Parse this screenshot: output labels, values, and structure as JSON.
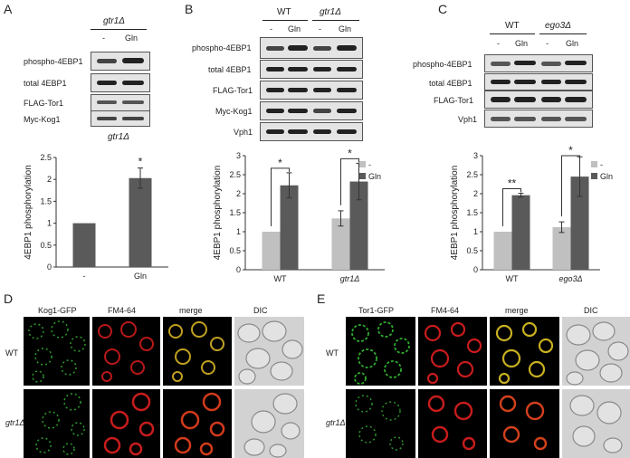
{
  "panels": {
    "A": {
      "letter": "A",
      "strain": "gtr1Δ",
      "lanes": [
        "-",
        "Gln"
      ],
      "blots": [
        "phospho-4EBP1",
        "total 4EBP1",
        "FLAG-Tor1",
        "Myc-Kog1"
      ],
      "chart_title": "gtr1Δ"
    },
    "B": {
      "letter": "B",
      "groups": [
        "WT",
        "gtr1Δ"
      ],
      "lanes": [
        "-",
        "Gln",
        "-",
        "Gln"
      ],
      "blots": [
        "phospho-4EBP1",
        "total 4EBP1",
        "FLAG-Tor1",
        "Myc-Kog1",
        "Vph1"
      ]
    },
    "C": {
      "letter": "C",
      "groups": [
        "WT",
        "ego3Δ"
      ],
      "lanes": [
        "-",
        "Gln",
        "-",
        "Gln"
      ],
      "blots": [
        "phospho-4EBP1",
        "total 4EBP1",
        "FLAG-Tor1",
        "Vph1"
      ]
    },
    "D": {
      "letter": "D",
      "columns": [
        "Kog1-GFP",
        "FM4-64",
        "merge",
        "DIC"
      ],
      "rows": [
        "WT",
        "gtr1Δ"
      ]
    },
    "E": {
      "letter": "E",
      "columns": [
        "Tor1-GFP",
        "FM4-64",
        "merge",
        "DIC"
      ],
      "rows": [
        "WT",
        "gtr1Δ"
      ]
    }
  },
  "colors": {
    "light_bar": "#c0c0c0",
    "dark_bar": "#5a5a5a",
    "green": "#3ec23e",
    "red": "#d81e1e"
  },
  "chart_data": [
    {
      "type": "bar",
      "panel": "A",
      "title": "gtr1Δ",
      "categories": [
        "-",
        "Gln"
      ],
      "values": [
        1.0,
        2.03
      ],
      "errors": [
        0,
        0.23
      ],
      "ylabel": "4EBP1 phosphorylation",
      "ylim": [
        0,
        2.5
      ],
      "yticks": [
        "0",
        "0.5",
        "1",
        "1.5",
        "2",
        "2.5"
      ],
      "annotations": [
        "*"
      ]
    },
    {
      "type": "bar",
      "panel": "B",
      "categories": [
        "WT",
        "gtr1Δ"
      ],
      "series": [
        {
          "name": "-",
          "values": [
            1.0,
            1.35
          ],
          "errors": [
            0,
            0.2
          ]
        },
        {
          "name": "Gln",
          "values": [
            2.22,
            2.32
          ],
          "errors": [
            0.33,
            0.48
          ]
        }
      ],
      "ylabel": "4EBP1 phosphorylation",
      "ylim": [
        0,
        3
      ],
      "yticks": [
        "0",
        "0.5",
        "1",
        "1.5",
        "2",
        "2.5",
        "3"
      ],
      "annotations": [
        "*",
        "*"
      ],
      "legend": "top-right"
    },
    {
      "type": "bar",
      "panel": "C",
      "categories": [
        "WT",
        "ego3Δ"
      ],
      "series": [
        {
          "name": "-",
          "values": [
            1.0,
            1.12
          ],
          "errors": [
            0,
            0.14
          ]
        },
        {
          "name": "Gln",
          "values": [
            1.96,
            2.45
          ],
          "errors": [
            0.05,
            0.52
          ]
        }
      ],
      "ylabel": "4EBP1 phosphorylation",
      "ylim": [
        0,
        3
      ],
      "yticks": [
        "0",
        "0.5",
        "1",
        "1.5",
        "2",
        "2.5",
        "3"
      ],
      "annotations": [
        "**",
        "*"
      ],
      "legend": "top-right"
    }
  ]
}
